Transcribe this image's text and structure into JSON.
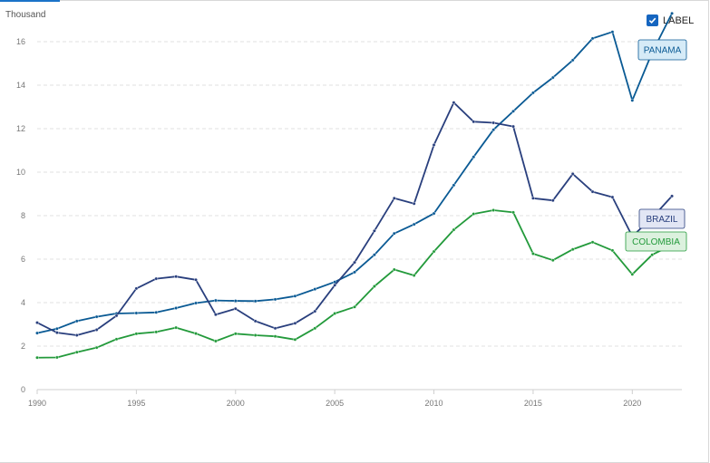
{
  "ui": {
    "unit": "Thousand",
    "label_toggle": {
      "text": "LABEL",
      "checked": true
    },
    "colors": {
      "panama": "#0a5a94",
      "brazil": "#293f7d",
      "colombia": "#239a3b",
      "grid": "#e0e0e0",
      "accent": "#1565c0"
    }
  },
  "chart_data": {
    "type": "line",
    "title": "",
    "xlabel": "",
    "ylabel": "Thousand",
    "x": [
      1990,
      1991,
      1992,
      1993,
      1994,
      1995,
      1996,
      1997,
      1998,
      1999,
      2000,
      2001,
      2002,
      2003,
      2004,
      2005,
      2006,
      2007,
      2008,
      2009,
      2010,
      2011,
      2012,
      2013,
      2014,
      2015,
      2016,
      2017,
      2018,
      2019,
      2020,
      2021,
      2022
    ],
    "xticks": [
      1990,
      1995,
      2000,
      2005,
      2010,
      2015,
      2020
    ],
    "yticks": [
      0,
      2,
      4,
      6,
      8,
      10,
      12,
      14,
      16
    ],
    "xlim": [
      1990,
      2022.5
    ],
    "ylim": [
      0,
      17
    ],
    "grid": true,
    "legend": "end-labels",
    "series": [
      {
        "name": "PANAMA",
        "key": "panama",
        "values": [
          2.6,
          2.8,
          3.15,
          3.35,
          3.5,
          3.52,
          3.55,
          3.75,
          3.98,
          4.1,
          4.08,
          4.07,
          4.15,
          4.3,
          4.62,
          4.95,
          5.4,
          6.2,
          7.18,
          7.6,
          8.1,
          9.4,
          10.7,
          11.95,
          12.8,
          13.65,
          14.35,
          15.15,
          16.15,
          16.45,
          13.3,
          15.5,
          17.3
        ]
      },
      {
        "name": "BRAZIL",
        "key": "brazil",
        "values": [
          3.08,
          2.62,
          2.5,
          2.75,
          3.4,
          4.65,
          5.1,
          5.2,
          5.05,
          3.45,
          3.72,
          3.15,
          2.82,
          3.05,
          3.6,
          4.8,
          5.85,
          7.3,
          8.8,
          8.55,
          11.25,
          13.2,
          12.32,
          12.27,
          12.1,
          8.8,
          8.7,
          9.92,
          9.1,
          8.85,
          7.05,
          7.9,
          8.9
        ]
      },
      {
        "name": "COLOMBIA",
        "key": "colombia",
        "values": [
          1.47,
          1.48,
          1.72,
          1.93,
          2.32,
          2.57,
          2.65,
          2.85,
          2.58,
          2.23,
          2.57,
          2.5,
          2.45,
          2.3,
          2.82,
          3.5,
          3.8,
          4.75,
          5.52,
          5.25,
          6.35,
          7.35,
          8.08,
          8.25,
          8.15,
          6.25,
          5.95,
          6.45,
          6.78,
          6.4,
          5.3,
          6.2,
          6.65
        ]
      }
    ],
    "end_labels": [
      {
        "series": "PANAMA",
        "text": "PANAMA"
      },
      {
        "series": "BRAZIL",
        "text": "BRAZIL"
      },
      {
        "series": "COLOMBIA",
        "text": "COLOMBIA"
      }
    ]
  }
}
